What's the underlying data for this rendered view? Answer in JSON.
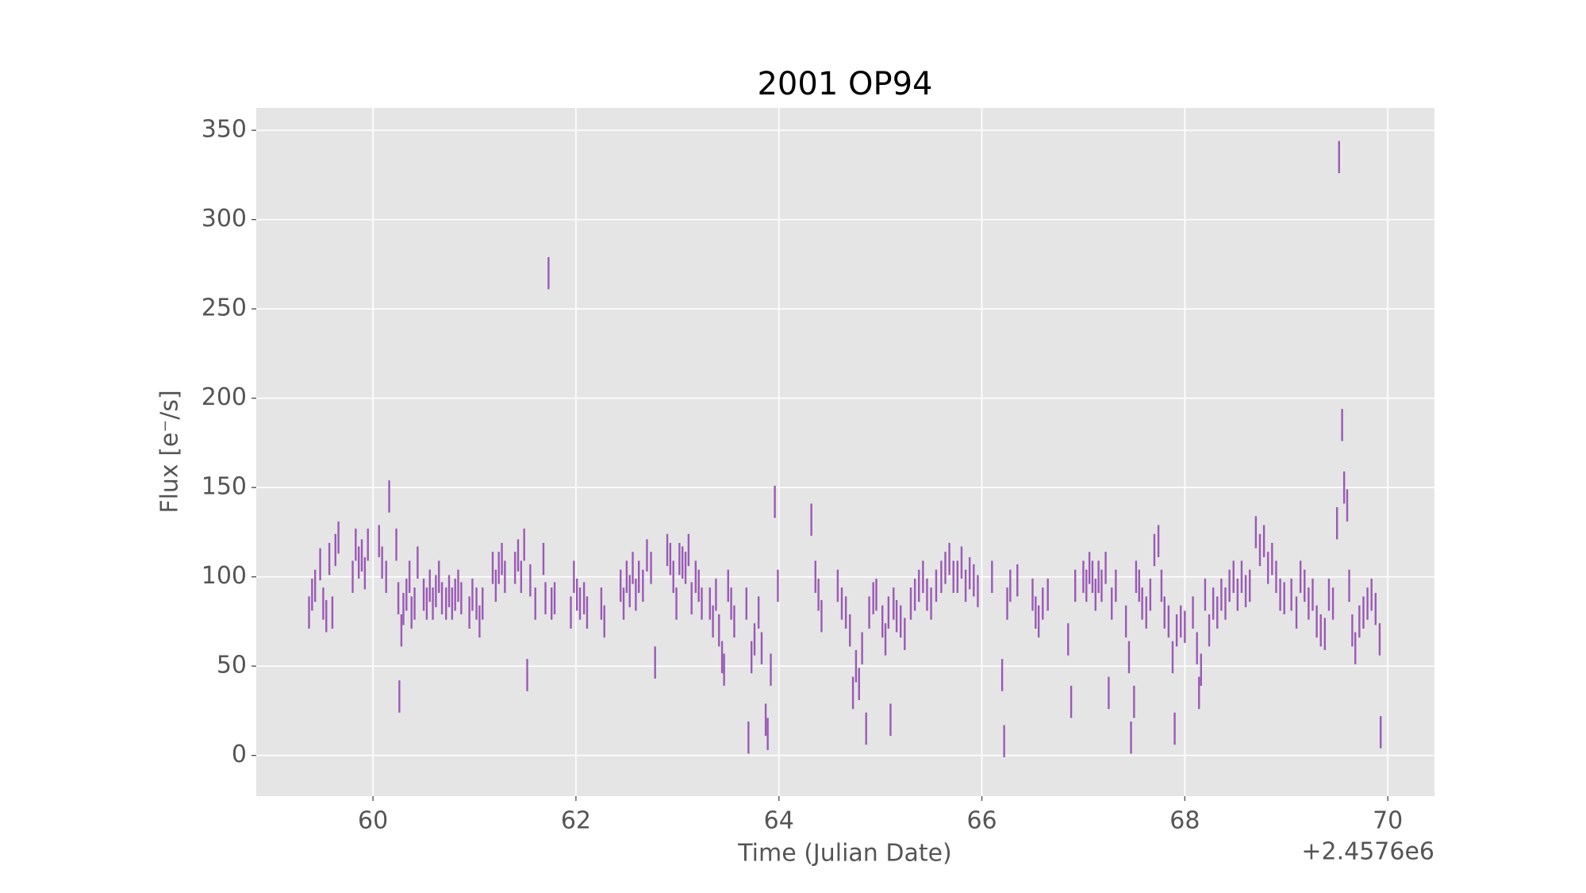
{
  "chart_data": {
    "type": "errorbar",
    "title": "2001 OP94",
    "x_label": "Time (Julian Date)",
    "y_label": "Flux [e⁻/s]",
    "x_offset_label": "+2.4576e6",
    "color": "#9b59b6",
    "grid": true,
    "yerr": 9,
    "xlim": [
      58.85,
      70.46
    ],
    "ylim": [
      -22.8,
      362.5
    ],
    "xticks": [
      60,
      62,
      64,
      66,
      68,
      70
    ],
    "yticks": [
      0,
      50,
      100,
      150,
      200,
      250,
      300,
      350
    ],
    "x": [
      59.37,
      59.4,
      59.43,
      59.48,
      59.51,
      59.54,
      59.57,
      59.6,
      59.63,
      59.66,
      59.8,
      59.83,
      59.86,
      59.89,
      59.92,
      59.95,
      60.06,
      60.09,
      60.13,
      60.16,
      60.23,
      60.25,
      60.26,
      60.28,
      60.3,
      60.33,
      60.36,
      60.38,
      60.41,
      60.44,
      60.5,
      60.53,
      60.56,
      60.59,
      60.62,
      60.65,
      60.68,
      60.72,
      60.75,
      60.78,
      60.81,
      60.84,
      60.87,
      60.95,
      60.98,
      61.02,
      61.05,
      61.08,
      61.18,
      61.21,
      61.24,
      61.27,
      61.3,
      61.4,
      61.43,
      61.46,
      61.49,
      61.52,
      61.55,
      61.6,
      61.68,
      61.7,
      61.73,
      61.76,
      61.79,
      61.95,
      61.98,
      62.01,
      62.04,
      62.08,
      62.11,
      62.25,
      62.28,
      62.44,
      62.47,
      62.5,
      62.53,
      62.56,
      62.59,
      62.62,
      62.66,
      62.7,
      62.74,
      62.78,
      62.9,
      62.93,
      62.96,
      62.99,
      63.02,
      63.05,
      63.08,
      63.11,
      63.14,
      63.18,
      63.21,
      63.24,
      63.32,
      63.35,
      63.38,
      63.41,
      63.44,
      63.46,
      63.5,
      63.53,
      63.56,
      63.68,
      63.7,
      63.73,
      63.76,
      63.8,
      63.83,
      63.87,
      63.89,
      63.92,
      63.96,
      63.99,
      64.32,
      64.36,
      64.39,
      64.42,
      64.58,
      64.62,
      64.66,
      64.7,
      64.73,
      64.76,
      64.79,
      64.82,
      64.86,
      64.89,
      64.93,
      64.96,
      65.02,
      65.05,
      65.08,
      65.1,
      65.13,
      65.16,
      65.2,
      65.24,
      65.3,
      65.34,
      65.38,
      65.42,
      65.46,
      65.5,
      65.55,
      65.6,
      65.64,
      65.68,
      65.72,
      65.76,
      65.8,
      65.84,
      65.88,
      65.92,
      65.96,
      66.1,
      66.2,
      66.22,
      66.25,
      66.28,
      66.35,
      66.5,
      66.53,
      66.56,
      66.6,
      66.65,
      66.85,
      66.88,
      66.92,
      67.0,
      67.03,
      67.06,
      67.09,
      67.12,
      67.15,
      67.18,
      67.22,
      67.25,
      67.28,
      67.32,
      67.42,
      67.45,
      67.47,
      67.5,
      67.52,
      67.55,
      67.58,
      67.62,
      67.66,
      67.7,
      67.74,
      67.77,
      67.8,
      67.84,
      67.88,
      67.9,
      67.92,
      67.96,
      68.0,
      68.08,
      68.12,
      68.14,
      68.16,
      68.2,
      68.24,
      68.28,
      68.32,
      68.36,
      68.4,
      68.44,
      68.48,
      68.52,
      68.56,
      68.6,
      68.64,
      68.7,
      68.74,
      68.78,
      68.82,
      68.86,
      68.9,
      68.94,
      68.98,
      69.05,
      69.1,
      69.14,
      69.18,
      69.22,
      69.26,
      69.3,
      69.34,
      69.38,
      69.42,
      69.46,
      69.5,
      69.52,
      69.55,
      69.57,
      69.6,
      69.62,
      69.65,
      69.68,
      69.72,
      69.76,
      69.8,
      69.84,
      69.88,
      69.92,
      69.93
    ],
    "values": [
      80,
      90,
      95,
      107,
      85,
      78,
      110,
      80,
      115,
      122,
      100,
      118,
      108,
      112,
      102,
      118,
      120,
      108,
      100,
      145,
      118,
      88,
      33,
      70,
      82,
      90,
      100,
      80,
      85,
      108,
      90,
      85,
      95,
      85,
      92,
      100,
      88,
      85,
      92,
      85,
      90,
      95,
      88,
      80,
      90,
      85,
      75,
      85,
      105,
      95,
      105,
      110,
      100,
      105,
      112,
      100,
      118,
      45,
      98,
      85,
      110,
      88,
      270,
      85,
      88,
      80,
      100,
      90,
      85,
      88,
      80,
      85,
      75,
      95,
      85,
      100,
      92,
      105,
      90,
      100,
      95,
      112,
      105,
      52,
      115,
      110,
      100,
      85,
      110,
      108,
      105,
      115,
      88,
      100,
      95,
      85,
      85,
      75,
      90,
      70,
      55,
      48,
      95,
      85,
      75,
      85,
      10,
      55,
      65,
      80,
      60,
      20,
      12,
      48,
      142,
      95,
      132,
      100,
      90,
      78,
      95,
      85,
      80,
      70,
      35,
      50,
      40,
      60,
      15,
      80,
      88,
      90,
      75,
      65,
      80,
      20,
      85,
      78,
      75,
      68,
      85,
      90,
      95,
      100,
      90,
      85,
      95,
      100,
      105,
      110,
      100,
      100,
      108,
      95,
      102,
      98,
      92,
      100,
      45,
      8,
      85,
      95,
      98,
      90,
      80,
      75,
      85,
      90,
      65,
      30,
      95,
      100,
      95,
      105,
      100,
      90,
      100,
      95,
      105,
      35,
      85,
      95,
      75,
      55,
      10,
      30,
      100,
      95,
      85,
      80,
      90,
      115,
      120,
      95,
      80,
      75,
      55,
      15,
      70,
      75,
      72,
      80,
      60,
      35,
      48,
      90,
      70,
      85,
      80,
      90,
      85,
      95,
      100,
      90,
      100,
      92,
      95,
      125,
      115,
      120,
      105,
      110,
      100,
      90,
      88,
      90,
      80,
      100,
      95,
      85,
      90,
      75,
      70,
      68,
      90,
      85,
      130,
      335,
      185,
      150,
      140,
      95,
      70,
      60,
      75,
      80,
      85,
      90,
      82,
      65,
      13
    ]
  }
}
